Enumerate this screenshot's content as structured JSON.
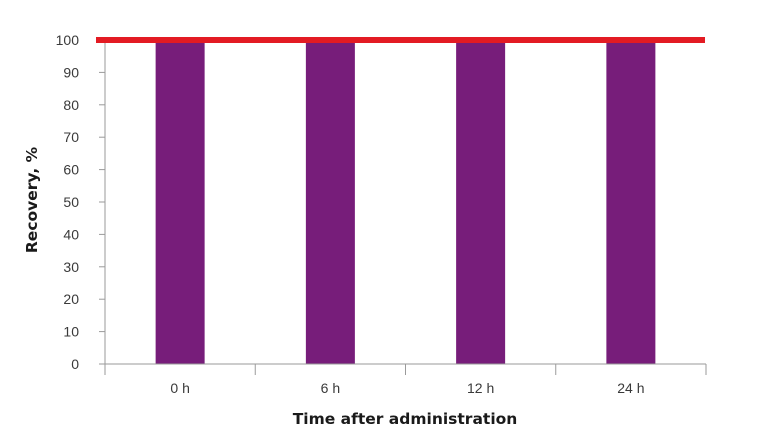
{
  "chart_data": {
    "type": "bar",
    "categories": [
      "0 h",
      "6 h",
      "12 h",
      "24 h"
    ],
    "values": [
      100,
      100,
      100,
      100
    ],
    "xlabel": "Time after administration",
    "ylabel": "Recovery, %",
    "ylim": [
      0,
      100
    ],
    "yticks": [
      0,
      10,
      20,
      30,
      40,
      50,
      60,
      70,
      80,
      90,
      100
    ],
    "grid": false,
    "reference_line": {
      "value": 100,
      "color": "#e31b23"
    },
    "bar_color": "#771d7a"
  }
}
